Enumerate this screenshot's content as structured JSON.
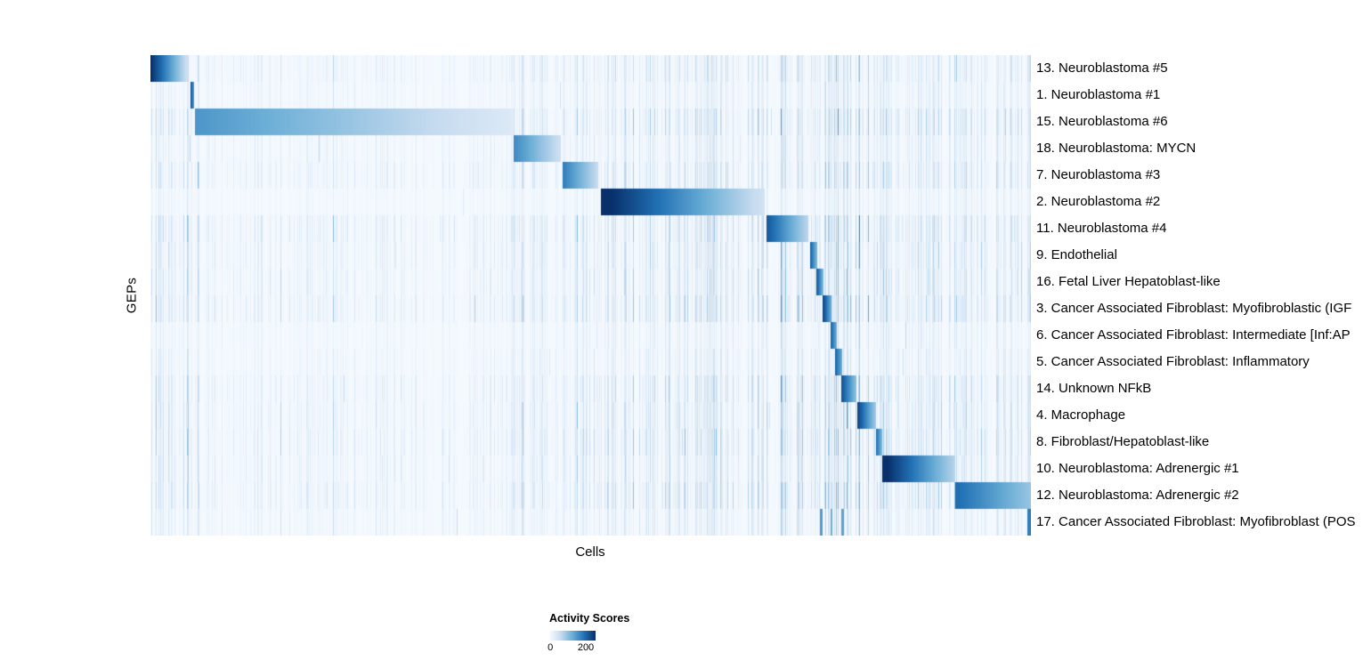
{
  "chart_data": {
    "type": "heatmap",
    "title": "",
    "xlabel": "Cells",
    "ylabel": "GEPs",
    "x_axis": {
      "label": "Cells",
      "tick_labels": []
    },
    "y_axis": {
      "label": "GEPs"
    },
    "legend": {
      "title": "Activity Scores",
      "min": 0,
      "max": 200,
      "min_label": "0",
      "max_label": "200",
      "max_label_position": 0.8,
      "position": "bottom",
      "colormap": [
        "#f7fbff",
        "#c6dbef",
        "#6baed6",
        "#2171b5",
        "#08306b"
      ]
    },
    "grid": false,
    "description": "Cells sorted along x-axis; each GEP row shows a contiguous block of high activity scores (segments given as fractional x start/end with activity value fading from 'from' to 'to').",
    "rows": [
      {
        "label": "13. Neuroblastoma #5",
        "segments": [
          {
            "start": 0.0,
            "end": 0.042,
            "from": 200,
            "to": 40
          }
        ]
      },
      {
        "label": "1. Neuroblastoma #1",
        "segments": [
          {
            "start": 0.045,
            "end": 0.05,
            "from": 170,
            "to": 120
          }
        ]
      },
      {
        "label": "15. Neuroblastoma #6",
        "segments": [
          {
            "start": 0.051,
            "end": 0.41,
            "from": 120,
            "to": 28
          }
        ]
      },
      {
        "label": "18. Neuroblastoma: MYCN",
        "segments": [
          {
            "start": 0.413,
            "end": 0.466,
            "from": 130,
            "to": 42
          }
        ]
      },
      {
        "label": "7. Neuroblastoma #3",
        "segments": [
          {
            "start": 0.468,
            "end": 0.509,
            "from": 140,
            "to": 48
          }
        ]
      },
      {
        "label": "2. Neuroblastoma #2",
        "segments": [
          {
            "start": 0.512,
            "end": 0.698,
            "from": 210,
            "to": 38
          }
        ]
      },
      {
        "label": "11. Neuroblastoma #4",
        "segments": [
          {
            "start": 0.7,
            "end": 0.747,
            "from": 170,
            "to": 55
          }
        ]
      },
      {
        "label": "9. Endothelial",
        "segments": [
          {
            "start": 0.749,
            "end": 0.757,
            "from": 160,
            "to": 90
          }
        ]
      },
      {
        "label": "16. Fetal Liver Hepatoblast-like",
        "segments": [
          {
            "start": 0.756,
            "end": 0.764,
            "from": 170,
            "to": 90
          }
        ]
      },
      {
        "label": "3. Cancer Associated Fibroblast: Myofibroblastic (IGF",
        "segments": [
          {
            "start": 0.763,
            "end": 0.774,
            "from": 185,
            "to": 100
          }
        ]
      },
      {
        "label": "6. Cancer Associated Fibroblast: Intermediate [Inf:AP",
        "segments": [
          {
            "start": 0.772,
            "end": 0.78,
            "from": 160,
            "to": 100
          }
        ]
      },
      {
        "label": "5. Cancer Associated Fibroblast: Inflammatory",
        "segments": [
          {
            "start": 0.778,
            "end": 0.786,
            "from": 160,
            "to": 100
          }
        ]
      },
      {
        "label": "14. Unknown NFkB",
        "segments": [
          {
            "start": 0.785,
            "end": 0.802,
            "from": 175,
            "to": 80
          }
        ]
      },
      {
        "label": "4. Macrophage",
        "segments": [
          {
            "start": 0.803,
            "end": 0.824,
            "from": 185,
            "to": 70
          }
        ]
      },
      {
        "label": "8. Fibroblast/Hepatoblast-like",
        "segments": [
          {
            "start": 0.824,
            "end": 0.831,
            "from": 150,
            "to": 90
          }
        ]
      },
      {
        "label": "10. Neuroblastoma: Adrenergic #1",
        "segments": [
          {
            "start": 0.831,
            "end": 0.914,
            "from": 210,
            "to": 58
          }
        ]
      },
      {
        "label": "12. Neuroblastoma: Adrenergic #2",
        "segments": [
          {
            "start": 0.914,
            "end": 1.0,
            "from": 155,
            "to": 75
          }
        ]
      },
      {
        "label": "17. Cancer Associated Fibroblast: Myofibroblast (POS",
        "segments": [
          {
            "start": 0.76,
            "end": 0.763,
            "from": 115,
            "to": 115
          },
          {
            "start": 0.772,
            "end": 0.775,
            "from": 100,
            "to": 100
          },
          {
            "start": 0.785,
            "end": 0.788,
            "from": 110,
            "to": 110
          },
          {
            "start": 0.996,
            "end": 1.0,
            "from": 140,
            "to": 140
          }
        ]
      }
    ]
  }
}
